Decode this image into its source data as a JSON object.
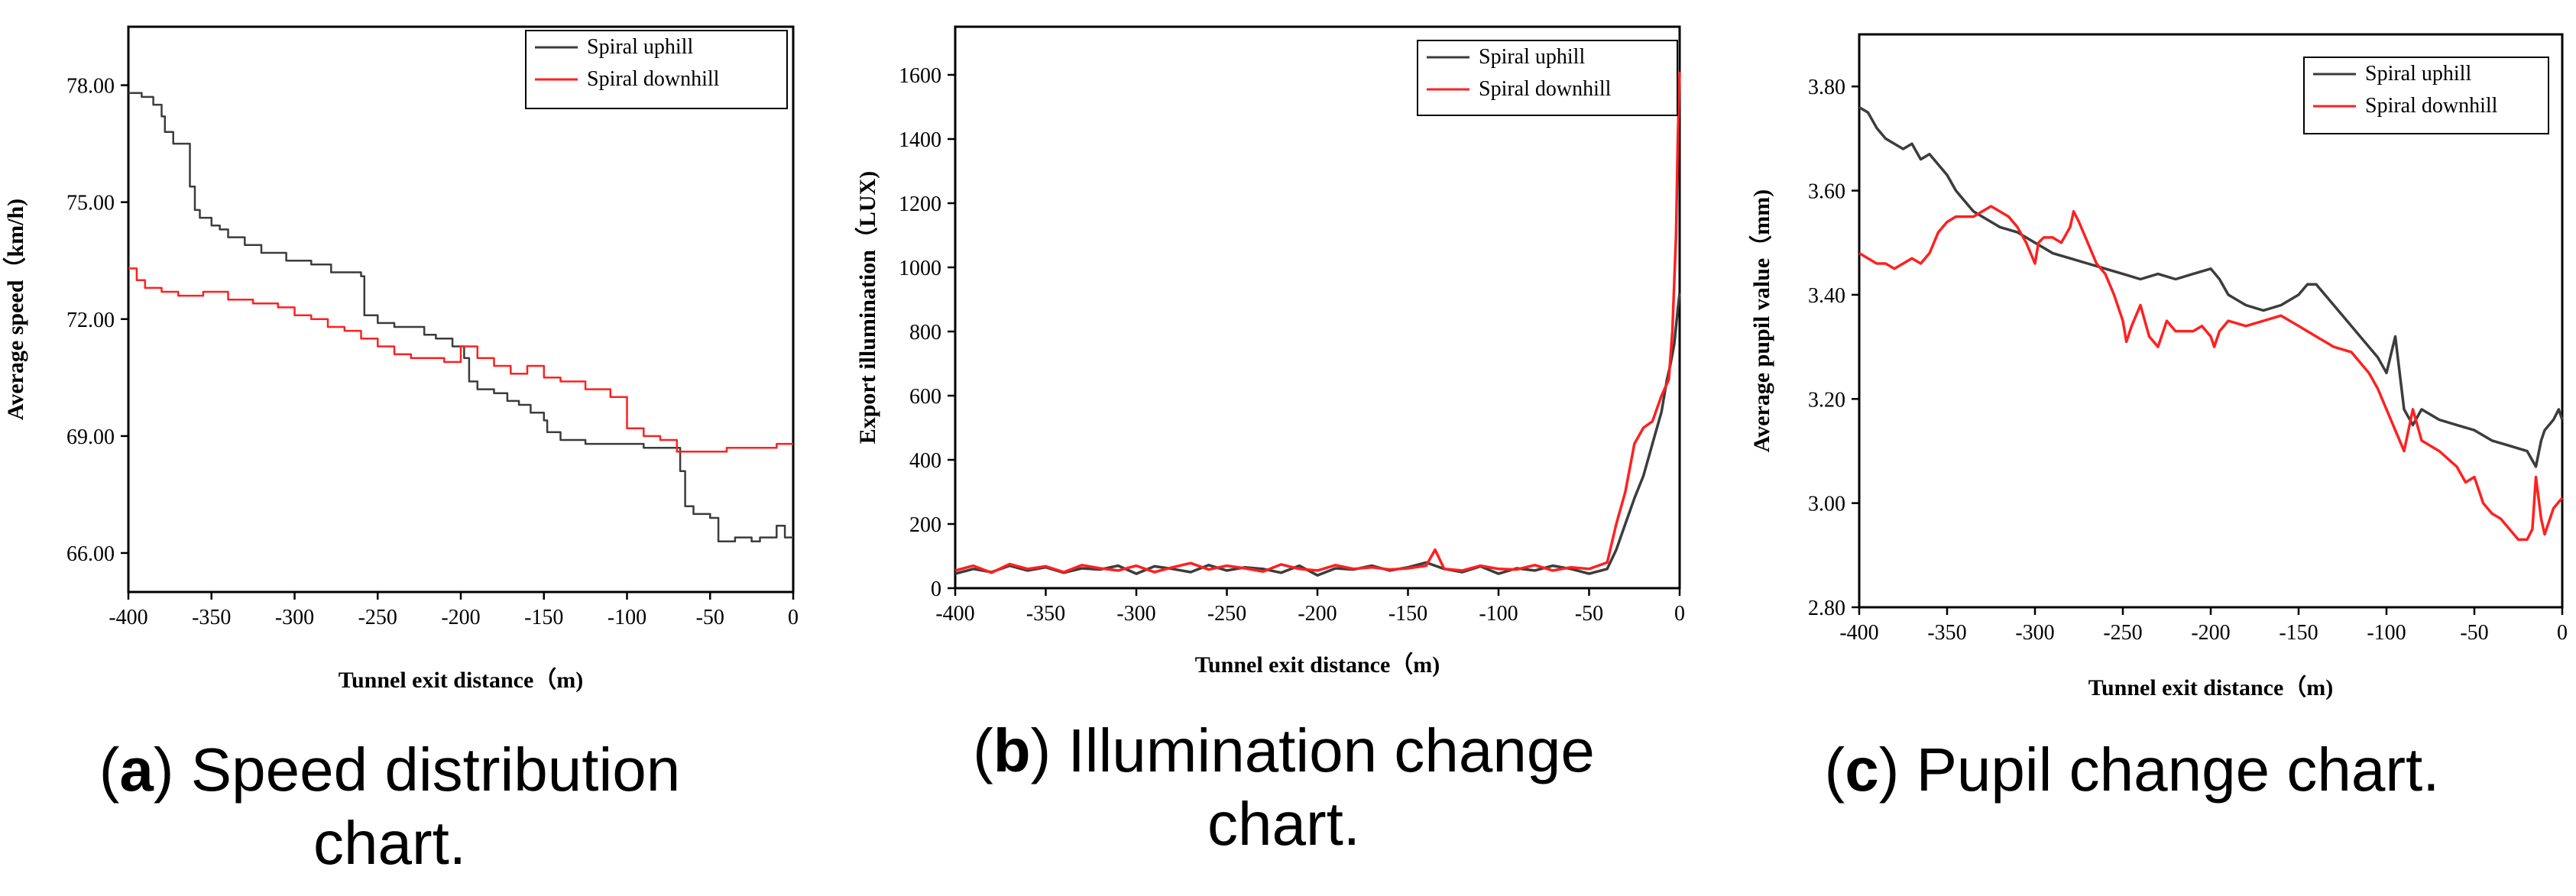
{
  "colors": {
    "uphill": "#3c3c3c",
    "downhill": "#ff2020",
    "axis": "#000000"
  },
  "chart_data": [
    {
      "type": "line",
      "panel": "a",
      "title": "",
      "caption_letter": "a",
      "caption_text": "Speed distribution chart.",
      "xlabel": "Tunnel exit distance（m)",
      "ylabel": "Average speed（km/h)",
      "xlim": [
        -400,
        0
      ],
      "ylim": [
        65,
        79.5
      ],
      "xticks": [
        "-400",
        "-350",
        "-300",
        "-250",
        "-200",
        "-150",
        "-100",
        "-50",
        "0"
      ],
      "xtick_values": [
        -400,
        -350,
        -300,
        -250,
        -200,
        -150,
        -100,
        -50,
        0
      ],
      "yticks": [
        "66.00",
        "69.00",
        "72.00",
        "75.00",
        "78.00"
      ],
      "ytick_values": [
        66,
        69,
        72,
        75,
        78
      ],
      "legend_position": "top-right",
      "series": [
        {
          "name": "Spiral uphill",
          "color_key": "uphill",
          "step": true,
          "x": [
            -400,
            -392,
            -385,
            -380,
            -378,
            -373,
            -368,
            -363,
            -360,
            -357,
            -355,
            -350,
            -345,
            -340,
            -330,
            -320,
            -305,
            -290,
            -278,
            -260,
            -258,
            -250,
            -240,
            -230,
            -222,
            -215,
            -205,
            -198,
            -195,
            -190,
            -180,
            -172,
            -165,
            -158,
            -150,
            -148,
            -140,
            -125,
            -105,
            -90,
            -75,
            -68,
            -65,
            -60,
            -50,
            -45,
            -35,
            -25,
            -20,
            -10,
            -5,
            0
          ],
          "y": [
            77.8,
            77.7,
            77.5,
            77.2,
            76.8,
            76.5,
            76.5,
            75.4,
            74.8,
            74.6,
            74.6,
            74.4,
            74.3,
            74.1,
            73.9,
            73.7,
            73.5,
            73.4,
            73.2,
            73.1,
            72.1,
            71.9,
            71.8,
            71.8,
            71.6,
            71.5,
            71.3,
            71.0,
            70.4,
            70.2,
            70.1,
            69.9,
            69.8,
            69.6,
            69.4,
            69.1,
            68.9,
            68.8,
            68.8,
            68.7,
            68.7,
            68.1,
            67.2,
            67.0,
            66.9,
            66.3,
            66.4,
            66.3,
            66.4,
            66.7,
            66.4,
            66.4
          ]
        },
        {
          "name": "Spiral downhill",
          "color_key": "downhill",
          "step": true,
          "x": [
            -400,
            -395,
            -390,
            -380,
            -370,
            -355,
            -340,
            -325,
            -310,
            -300,
            -290,
            -280,
            -270,
            -260,
            -250,
            -240,
            -230,
            -210,
            -200,
            -190,
            -180,
            -170,
            -160,
            -150,
            -140,
            -125,
            -110,
            -100,
            -90,
            -80,
            -70,
            -65,
            -50,
            -40,
            -30,
            -20,
            -10,
            0
          ],
          "y": [
            73.3,
            73.0,
            72.8,
            72.7,
            72.6,
            72.7,
            72.5,
            72.4,
            72.3,
            72.1,
            72.0,
            71.8,
            71.7,
            71.5,
            71.3,
            71.1,
            71.0,
            70.9,
            71.3,
            71.0,
            70.8,
            70.6,
            70.8,
            70.5,
            70.4,
            70.2,
            70.0,
            69.2,
            69.0,
            68.9,
            68.6,
            68.6,
            68.6,
            68.7,
            68.7,
            68.7,
            68.8,
            68.8
          ]
        }
      ]
    },
    {
      "type": "line",
      "panel": "b",
      "title": "",
      "caption_letter": "b",
      "caption_text_line1": "Illumination change",
      "caption_text_line2": "chart.",
      "xlabel": "Tunnel exit distance（m)",
      "ylabel": "Export illumination（LUX)",
      "xlim": [
        -400,
        0
      ],
      "ylim": [
        0,
        1750
      ],
      "xticks": [
        "-400",
        "-350",
        "-300",
        "-250",
        "-200",
        "-150",
        "-100",
        "-50",
        "0"
      ],
      "xtick_values": [
        -400,
        -350,
        -300,
        -250,
        -200,
        -150,
        -100,
        -50,
        0
      ],
      "yticks": [
        "0",
        "200",
        "400",
        "600",
        "800",
        "1000",
        "1200",
        "1400",
        "1600"
      ],
      "ytick_values": [
        0,
        200,
        400,
        600,
        800,
        1000,
        1200,
        1400,
        1600
      ],
      "legend_position": "top-right",
      "series": [
        {
          "name": "Spiral uphill",
          "color_key": "uphill",
          "step": false,
          "x": [
            -400,
            -390,
            -380,
            -370,
            -360,
            -350,
            -340,
            -330,
            -320,
            -310,
            -300,
            -290,
            -280,
            -270,
            -260,
            -250,
            -240,
            -230,
            -220,
            -210,
            -200,
            -190,
            -180,
            -170,
            -160,
            -150,
            -140,
            -130,
            -120,
            -110,
            -100,
            -90,
            -80,
            -70,
            -60,
            -50,
            -40,
            -35,
            -30,
            -25,
            -20,
            -15,
            -10,
            -7,
            -5,
            -3,
            -1,
            0
          ],
          "y": [
            45,
            60,
            50,
            70,
            55,
            65,
            48,
            62,
            58,
            70,
            45,
            68,
            60,
            50,
            72,
            55,
            65,
            60,
            48,
            70,
            40,
            62,
            58,
            70,
            55,
            65,
            80,
            60,
            50,
            68,
            45,
            62,
            55,
            70,
            60,
            45,
            60,
            120,
            200,
            280,
            350,
            450,
            550,
            650,
            700,
            760,
            870,
            920
          ]
        },
        {
          "name": "Spiral downhill",
          "color_key": "downhill",
          "step": false,
          "x": [
            -400,
            -390,
            -380,
            -370,
            -360,
            -350,
            -340,
            -330,
            -320,
            -310,
            -300,
            -290,
            -280,
            -270,
            -260,
            -250,
            -240,
            -230,
            -220,
            -210,
            -200,
            -190,
            -180,
            -170,
            -160,
            -150,
            -140,
            -135,
            -130,
            -120,
            -110,
            -100,
            -90,
            -80,
            -70,
            -60,
            -50,
            -40,
            -35,
            -30,
            -25,
            -20,
            -15,
            -10,
            -6,
            -4,
            -2,
            -1,
            0
          ],
          "y": [
            55,
            70,
            48,
            75,
            60,
            68,
            50,
            72,
            62,
            55,
            70,
            50,
            65,
            78,
            58,
            70,
            62,
            52,
            74,
            60,
            55,
            72,
            60,
            65,
            58,
            62,
            70,
            120,
            60,
            55,
            70,
            60,
            58,
            72,
            55,
            65,
            60,
            80,
            200,
            300,
            450,
            500,
            520,
            600,
            650,
            800,
            1100,
            1400,
            1610
          ]
        }
      ]
    },
    {
      "type": "line",
      "panel": "c",
      "title": "",
      "caption_letter": "c",
      "caption_text": "Pupil change chart.",
      "xlabel": "Tunnel exit distance（m)",
      "ylabel": "Average pupil value（mm)",
      "xlim": [
        -400,
        0
      ],
      "ylim": [
        2.8,
        3.9
      ],
      "xticks": [
        "-400",
        "-350",
        "-300",
        "-250",
        "-200",
        "-150",
        "-100",
        "-50",
        "0"
      ],
      "xtick_values": [
        -400,
        -350,
        -300,
        -250,
        -200,
        -150,
        -100,
        -50,
        0
      ],
      "yticks": [
        "2.80",
        "3.00",
        "3.20",
        "3.40",
        "3.60",
        "3.80"
      ],
      "ytick_values": [
        2.8,
        3.0,
        3.2,
        3.4,
        3.6,
        3.8
      ],
      "legend_position": "top-right",
      "series": [
        {
          "name": "Spiral uphill",
          "color_key": "uphill",
          "step": false,
          "x": [
            -400,
            -395,
            -390,
            -385,
            -380,
            -375,
            -370,
            -365,
            -360,
            -355,
            -350,
            -345,
            -340,
            -335,
            -330,
            -320,
            -310,
            -300,
            -290,
            -280,
            -270,
            -260,
            -250,
            -240,
            -230,
            -220,
            -210,
            -200,
            -195,
            -190,
            -180,
            -170,
            -160,
            -150,
            -145,
            -140,
            -135,
            -130,
            -120,
            -110,
            -105,
            -100,
            -95,
            -90,
            -85,
            -80,
            -70,
            -60,
            -50,
            -40,
            -30,
            -20,
            -15,
            -12,
            -10,
            -5,
            -2,
            0
          ],
          "y": [
            3.76,
            3.75,
            3.72,
            3.7,
            3.69,
            3.68,
            3.69,
            3.66,
            3.67,
            3.65,
            3.63,
            3.6,
            3.58,
            3.56,
            3.55,
            3.53,
            3.52,
            3.5,
            3.48,
            3.47,
            3.46,
            3.45,
            3.44,
            3.43,
            3.44,
            3.43,
            3.44,
            3.45,
            3.43,
            3.4,
            3.38,
            3.37,
            3.38,
            3.4,
            3.42,
            3.42,
            3.4,
            3.38,
            3.34,
            3.3,
            3.28,
            3.25,
            3.32,
            3.18,
            3.15,
            3.18,
            3.16,
            3.15,
            3.14,
            3.12,
            3.11,
            3.1,
            3.07,
            3.12,
            3.14,
            3.16,
            3.18,
            3.16
          ]
        },
        {
          "name": "Spiral downhill",
          "color_key": "downhill",
          "step": false,
          "x": [
            -400,
            -395,
            -390,
            -385,
            -380,
            -375,
            -370,
            -365,
            -360,
            -355,
            -350,
            -345,
            -340,
            -335,
            -330,
            -325,
            -320,
            -315,
            -310,
            -305,
            -300,
            -298,
            -295,
            -290,
            -285,
            -280,
            -278,
            -275,
            -270,
            -265,
            -260,
            -255,
            -250,
            -248,
            -245,
            -240,
            -235,
            -230,
            -225,
            -220,
            -215,
            -210,
            -205,
            -200,
            -198,
            -195,
            -190,
            -180,
            -170,
            -160,
            -150,
            -145,
            -140,
            -130,
            -120,
            -110,
            -105,
            -100,
            -95,
            -90,
            -85,
            -80,
            -70,
            -60,
            -55,
            -50,
            -45,
            -40,
            -35,
            -30,
            -25,
            -20,
            -17,
            -15,
            -12,
            -10,
            -5,
            0
          ],
          "y": [
            3.48,
            3.47,
            3.46,
            3.46,
            3.45,
            3.46,
            3.47,
            3.46,
            3.48,
            3.52,
            3.54,
            3.55,
            3.55,
            3.55,
            3.56,
            3.57,
            3.56,
            3.55,
            3.53,
            3.5,
            3.46,
            3.5,
            3.51,
            3.51,
            3.5,
            3.53,
            3.56,
            3.54,
            3.5,
            3.46,
            3.44,
            3.4,
            3.35,
            3.31,
            3.34,
            3.38,
            3.32,
            3.3,
            3.35,
            3.33,
            3.33,
            3.33,
            3.34,
            3.32,
            3.3,
            3.33,
            3.35,
            3.34,
            3.35,
            3.36,
            3.34,
            3.33,
            3.32,
            3.3,
            3.29,
            3.25,
            3.22,
            3.18,
            3.14,
            3.1,
            3.18,
            3.12,
            3.1,
            3.07,
            3.04,
            3.05,
            3.0,
            2.98,
            2.97,
            2.95,
            2.93,
            2.93,
            2.95,
            3.05,
            2.97,
            2.94,
            2.99,
            3.01
          ]
        }
      ]
    }
  ]
}
